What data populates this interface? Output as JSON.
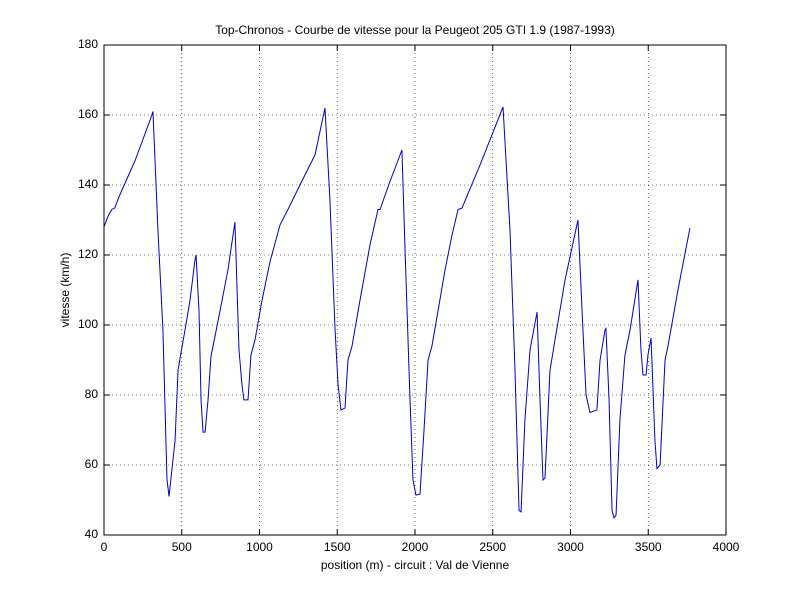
{
  "chart_data": {
    "type": "line",
    "title": "Top-Chronos - Courbe de vitesse pour la Peugeot 205 GTI 1.9 (1987-1993)",
    "x_label": "position (m) - circuit : Val de Vienne",
    "y_label": "vitesse (km/h)",
    "xlim": [
      0,
      4000
    ],
    "ylim": [
      40,
      180
    ],
    "xticks": [
      0,
      500,
      1000,
      1500,
      2000,
      2500,
      3000,
      3500,
      4000
    ],
    "yticks": [
      40,
      60,
      80,
      100,
      120,
      140,
      160,
      180
    ],
    "grid": true,
    "series": [
      {
        "name": "vitesse",
        "color": "#0000c8",
        "x": [
          0,
          25,
          50,
          70,
          100,
          150,
          200,
          250,
          300,
          315,
          347,
          379,
          405,
          418,
          457,
          476,
          495,
          521,
          553,
          585,
          592,
          611,
          624,
          637,
          650,
          669,
          688,
          746,
          797,
          842,
          868,
          887,
          900,
          926,
          945,
          971,
          1016,
          1067,
          1132,
          1183,
          1260,
          1357,
          1421,
          1453,
          1486,
          1505,
          1524,
          1550,
          1569,
          1595,
          1646,
          1711,
          1762,
          1775,
          1839,
          1916,
          1936,
          1968,
          1987,
          2006,
          2032,
          2058,
          2084,
          2109,
          2148,
          2193,
          2238,
          2277,
          2302,
          2418,
          2566,
          2611,
          2643,
          2669,
          2682,
          2707,
          2740,
          2785,
          2804,
          2823,
          2836,
          2868,
          2900,
          2965,
          3048,
          3080,
          3100,
          3125,
          3170,
          3190,
          3222,
          3228,
          3248,
          3267,
          3280,
          3293,
          3318,
          3350,
          3383,
          3434,
          3453,
          3466,
          3486,
          3498,
          3518,
          3543,
          3556,
          3576,
          3608,
          3627,
          3691,
          3768
        ],
        "values": [
          128,
          131,
          133,
          133.5,
          137,
          142,
          147,
          153,
          159,
          161,
          127,
          98.6,
          56,
          51,
          67,
          87,
          92,
          98.6,
          107,
          118.6,
          120,
          104,
          78.6,
          69.4,
          69.4,
          78.6,
          91,
          104,
          115.7,
          129.4,
          93,
          83,
          78.6,
          78.6,
          91.4,
          95.7,
          107,
          118,
          128.6,
          133,
          140,
          148.6,
          162,
          135.7,
          98.6,
          83,
          75.7,
          76.3,
          90,
          94,
          107,
          123,
          133,
          133,
          141,
          150,
          121.4,
          78.6,
          55.7,
          51.4,
          51.7,
          70,
          90,
          94,
          104,
          115.7,
          125.7,
          133,
          133.4,
          145.7,
          162.3,
          127,
          87,
          47,
          46.6,
          73,
          93,
          103.7,
          78.6,
          55.7,
          56.3,
          87,
          95.7,
          112.9,
          130,
          98.6,
          80,
          75,
          75.7,
          90,
          98.6,
          99,
          78.6,
          47,
          44.9,
          45.7,
          73,
          91.4,
          98.6,
          112.9,
          93,
          85.7,
          85.7,
          91.4,
          96.3,
          67,
          59,
          60,
          90,
          94,
          110,
          127.7
        ]
      }
    ]
  }
}
